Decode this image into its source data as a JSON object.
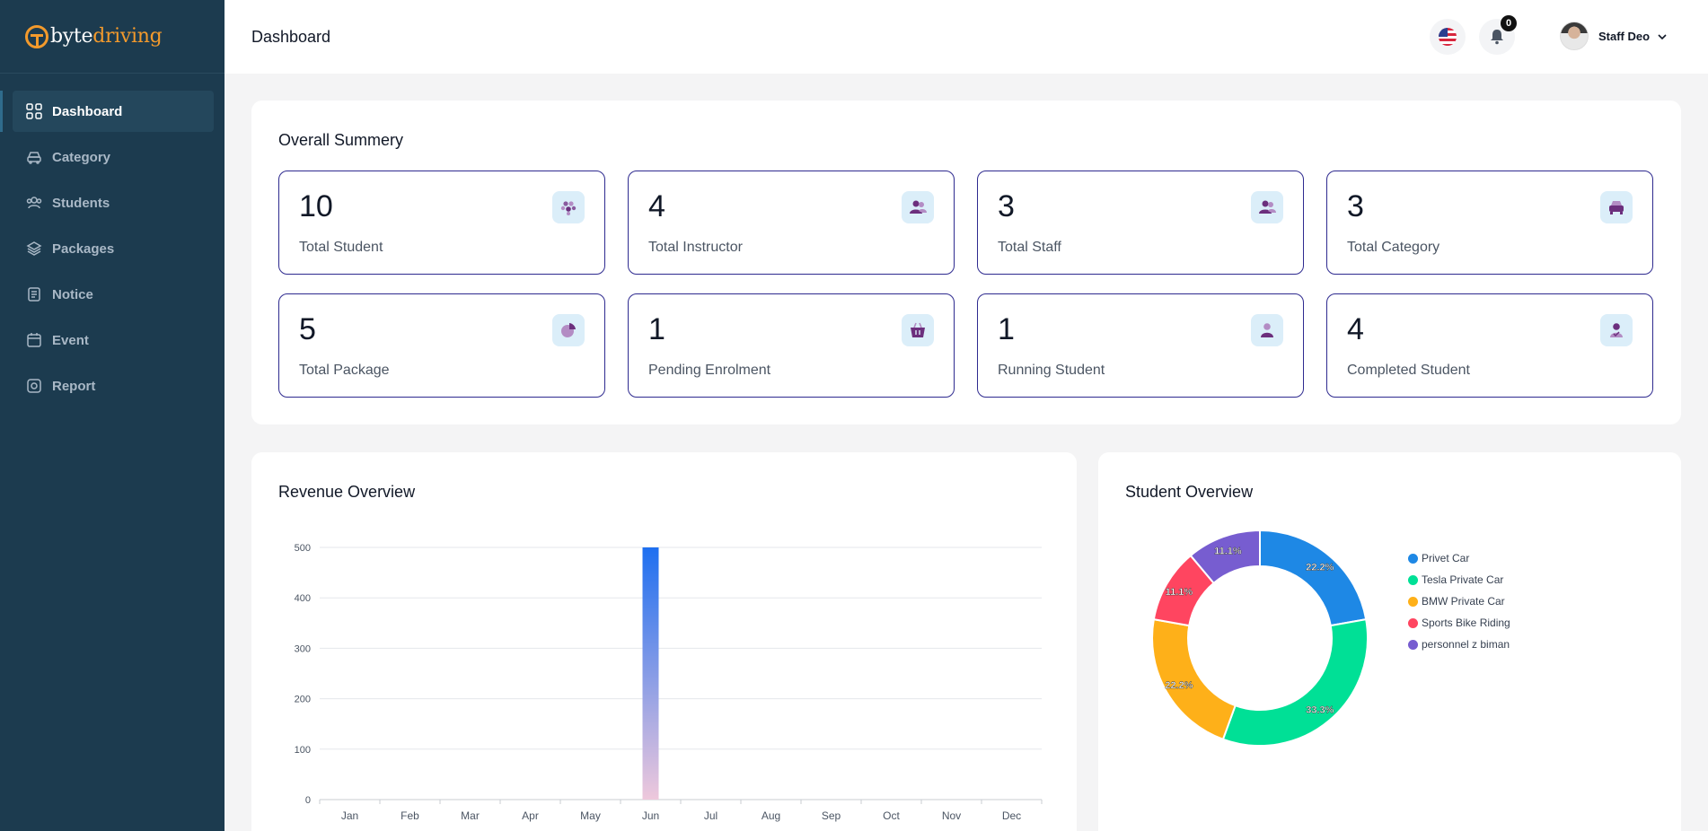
{
  "brand": {
    "part1": "byte",
    "part2": "driving"
  },
  "sidebar": {
    "items": [
      {
        "label": "Dashboard",
        "icon": "dashboard-grid-icon",
        "active": true
      },
      {
        "label": "Category",
        "icon": "car-icon"
      },
      {
        "label": "Students",
        "icon": "users-icon"
      },
      {
        "label": "Packages",
        "icon": "layers-icon"
      },
      {
        "label": "Notice",
        "icon": "document-icon"
      },
      {
        "label": "Event",
        "icon": "calendar-icon"
      },
      {
        "label": "Report",
        "icon": "report-icon"
      }
    ]
  },
  "header": {
    "title": "Dashboard",
    "notification_count": "0",
    "user_name": "Staff Deo"
  },
  "summary": {
    "title": "Overall Summery",
    "cards": [
      {
        "value": "10",
        "label": "Total Student",
        "icon": "students-cluster-icon"
      },
      {
        "value": "4",
        "label": "Total Instructor",
        "icon": "instructor-icon"
      },
      {
        "value": "3",
        "label": "Total Staff",
        "icon": "staff-icon"
      },
      {
        "value": "3",
        "label": "Total Category",
        "icon": "car-front-icon"
      },
      {
        "value": "5",
        "label": "Total Package",
        "icon": "pie-icon"
      },
      {
        "value": "1",
        "label": "Pending Enrolment",
        "icon": "basket-icon"
      },
      {
        "value": "1",
        "label": "Running Student",
        "icon": "person-icon"
      },
      {
        "value": "4",
        "label": "Completed Student",
        "icon": "person-check-icon"
      }
    ]
  },
  "revenue": {
    "title": "Revenue Overview"
  },
  "students_overview": {
    "title": "Student Overview"
  },
  "colors": {
    "sidebar_bg": "#1c3b4f",
    "brand_orange": "#f39a2c",
    "card_border": "#2e2a8f",
    "bar_top": "#1e6ff0",
    "bar_bottom": "#eec8dc"
  },
  "chart_data": [
    {
      "type": "bar",
      "title": "Revenue Overview",
      "categories": [
        "Jan",
        "Feb",
        "Mar",
        "Apr",
        "May",
        "Jun",
        "Jul",
        "Aug",
        "Sep",
        "Oct",
        "Nov",
        "Dec"
      ],
      "values": [
        0,
        0,
        0,
        0,
        0,
        500,
        0,
        0,
        0,
        0,
        0,
        0
      ],
      "ylim": [
        0,
        500
      ],
      "yticks": [
        0,
        100,
        200,
        300,
        400,
        500
      ],
      "grid": true
    },
    {
      "type": "pie",
      "title": "Student Overview",
      "donut": true,
      "legend_position": "right",
      "labels": [
        "Privet Car",
        "Tesla Private Car",
        "BMW Private Car",
        "Sports Bike Riding",
        "personnel z biman"
      ],
      "values": [
        22.2,
        33.3,
        22.2,
        11.1,
        11.1
      ],
      "value_labels": [
        "22.2%",
        "33.3%",
        "22.2%",
        "11.1%",
        "11.1%"
      ],
      "colors": [
        "#1e88e5",
        "#00e096",
        "#feb019",
        "#ff4560",
        "#775dd0"
      ]
    }
  ]
}
